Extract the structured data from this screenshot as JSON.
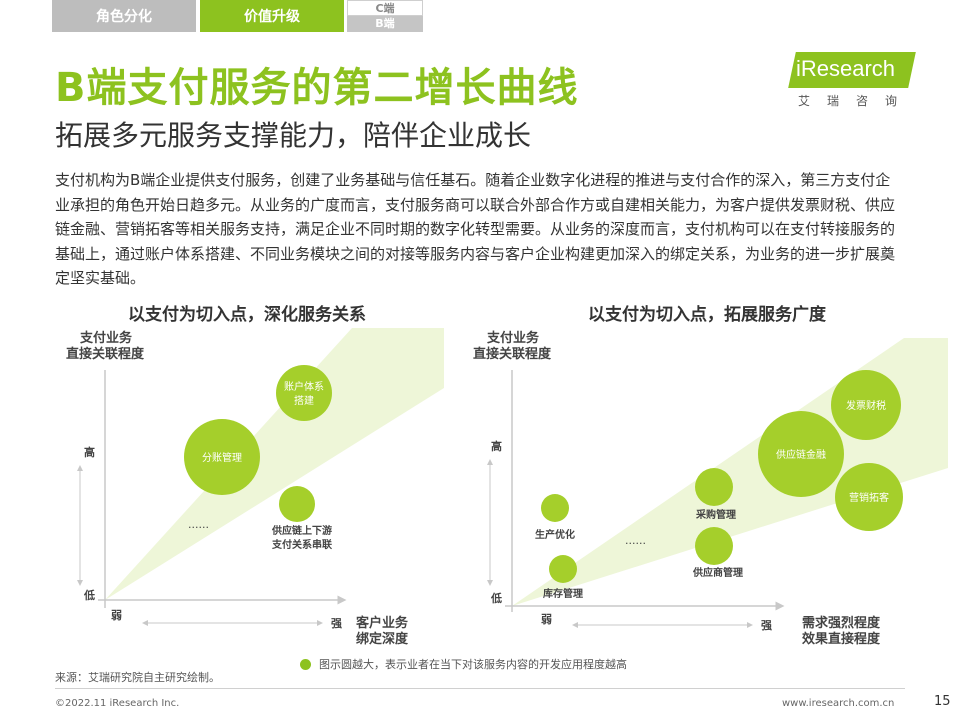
{
  "tabs": [
    {
      "label": "角色分化"
    },
    {
      "label": "价值升级"
    },
    {
      "label_top": "C端",
      "label_bottom": "B端"
    }
  ],
  "title": "B端支付服务的第二增长曲线",
  "subtitle": "拓展多元服务支撑能力，陪伴企业成长",
  "logo": {
    "brand": "iResearch",
    "sub": "艾瑞咨询"
  },
  "body": "支付机构为B端企业提供支付服务，创建了业务基础与信任基石。随着企业数字化进程的推进与支付合作的深入，第三方支付企业承担的角色开始日趋多元。从业务的广度而言，支付服务商可以联合外部合作方或自建相关能力，为客户提供发票财税、供应链金融、营销拓客等相关服务支持，满足企业不同时期的数字化转型需要。从业务的深度而言，支付机构可以在支付转接服务的基础上，通过账户体系搭建、不同业务模块之间的对接等服务内容与客户企业构建更加深入的绑定关系，为业务的进一步扩展奠定坚实基础。",
  "chart_data": [
    {
      "type": "bubble",
      "title": "以支付为切入点，深化服务关系",
      "ylabel": "支付业务直接关联程度",
      "xlabel": "客户业务绑定深度",
      "y_high": "高",
      "y_low": "低",
      "x_low": "弱",
      "x_high": "强",
      "ellipsis": "......",
      "points": [
        {
          "label": "分账管理",
          "size": "large"
        },
        {
          "label": "账户体系搭建",
          "size": "medium"
        },
        {
          "label": "供应链上下游支付关系串联",
          "size": "small"
        }
      ]
    },
    {
      "type": "bubble",
      "title": "以支付为切入点，拓展服务广度",
      "ylabel": "支付业务直接关联程度",
      "xlabel": "需求强烈程度效果直接程度",
      "y_high": "高",
      "y_low": "低",
      "x_low": "弱",
      "x_high": "强",
      "ellipsis": "......",
      "points": [
        {
          "label": "生产优化",
          "size": "small"
        },
        {
          "label": "库存管理",
          "size": "small"
        },
        {
          "label": "采购管理",
          "size": "small"
        },
        {
          "label": "供应商管理",
          "size": "small"
        },
        {
          "label": "供应链金融",
          "size": "large"
        },
        {
          "label": "发票财税",
          "size": "medium"
        },
        {
          "label": "营销拓客",
          "size": "medium"
        }
      ]
    }
  ],
  "legend": "图示圆越大，表示业者在当下对该服务内容的开发应用程度越高",
  "source": "来源：艾瑞研究院自主研究绘制。",
  "footer": {
    "copyright": "©2022.11 iResearch Inc.",
    "website": "www.iresearch.com.cn",
    "page": "15"
  },
  "colors": {
    "accent": "#8dc21f",
    "light": "#eef6d8"
  }
}
